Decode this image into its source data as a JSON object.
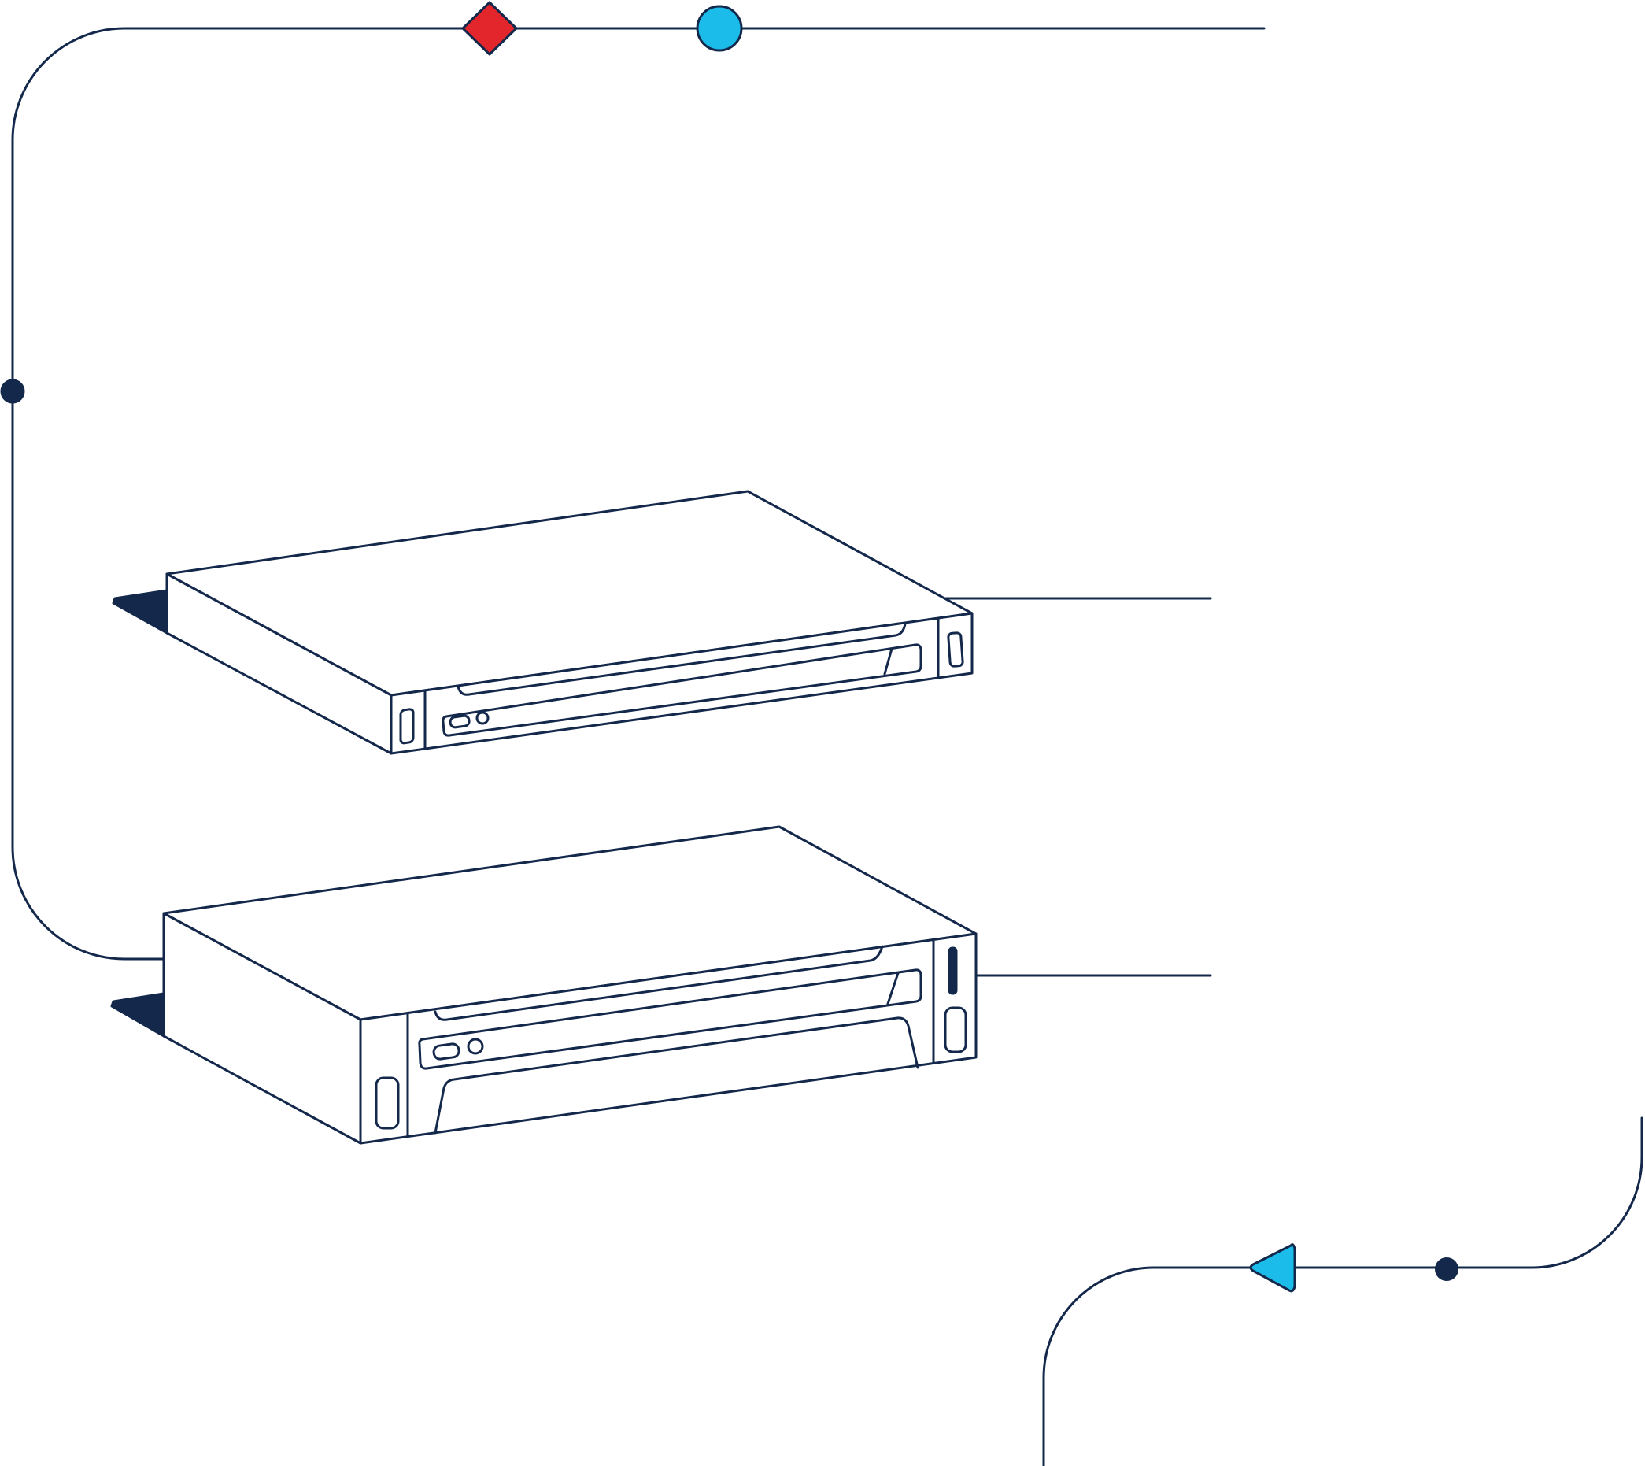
{
  "colors": {
    "stroke": "#13284b",
    "node_red": "#e3262b",
    "node_cyan": "#1bbcea",
    "node_dark": "#13284b",
    "device_fill": "#ffffff",
    "background": "#ffffff"
  },
  "nodes": [
    {
      "name": "red-diamond-node",
      "shape": "diamond",
      "color": "node_red"
    },
    {
      "name": "cyan-circle-node",
      "shape": "circle",
      "color": "node_cyan"
    },
    {
      "name": "dark-dot-node-left",
      "shape": "dot",
      "color": "node_dark"
    },
    {
      "name": "cyan-triangle-node",
      "shape": "triangle-left",
      "color": "node_cyan"
    },
    {
      "name": "dark-dot-node-bottom",
      "shape": "dot",
      "color": "node_dark"
    }
  ],
  "devices": [
    {
      "name": "server-unit-top",
      "kind": "1U rack server"
    },
    {
      "name": "server-unit-bottom",
      "kind": "2U rack server"
    }
  ]
}
